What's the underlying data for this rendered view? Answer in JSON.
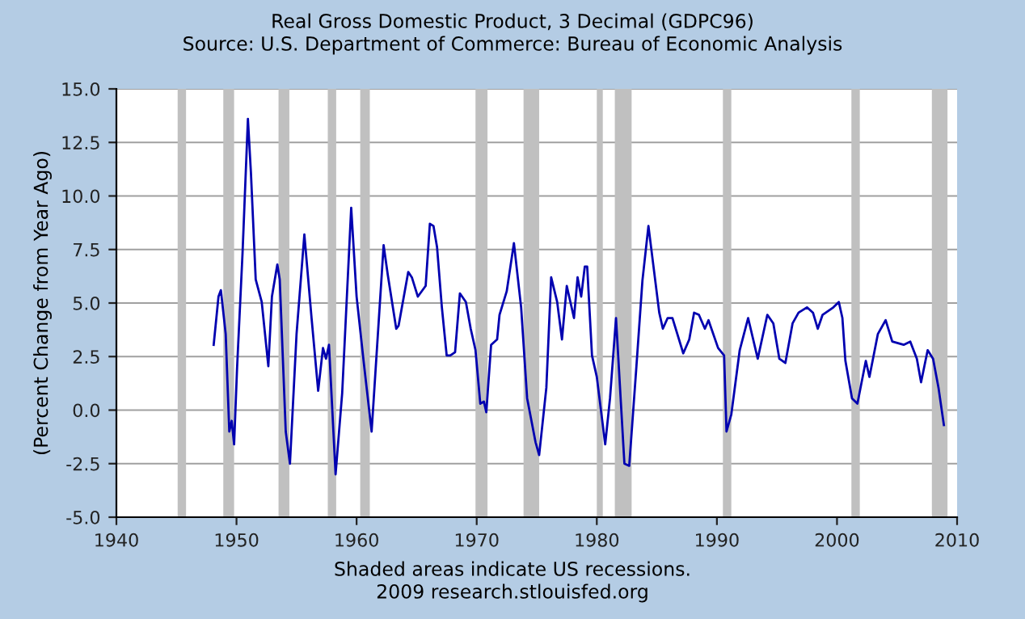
{
  "chart_data": {
    "type": "line",
    "title": "Real Gross Domestic Product, 3 Decimal (GDPC96)",
    "subtitle": "Source: U.S. Department of Commerce: Bureau of Economic Analysis",
    "ylabel": "(Percent Change from Year Ago)",
    "annotations": [
      "Shaded areas indicate US recessions.",
      "2009 research.stlouisfed.org"
    ],
    "xlim": [
      1940,
      2010
    ],
    "xticks": [
      1940,
      1950,
      1960,
      1970,
      1980,
      1990,
      2000,
      2010
    ],
    "ylim": [
      -5,
      15
    ],
    "yticks": [
      {
        "value": -5,
        "label": "-5.0"
      },
      {
        "value": -2.5,
        "label": "-2.5"
      },
      {
        "value": 0,
        "label": "0.0"
      },
      {
        "value": 2.5,
        "label": "2.5"
      },
      {
        "value": 5,
        "label": "5.0"
      },
      {
        "value": 7.5,
        "label": "7.5"
      },
      {
        "value": 10,
        "label": "10.0"
      },
      {
        "value": 12.5,
        "label": "12.5"
      },
      {
        "value": 15,
        "label": "15.0"
      }
    ],
    "grid": "y",
    "legend": false,
    "marker": "none",
    "line_style": "solid",
    "bands": [
      {
        "axis": "x",
        "from": 1945.1,
        "to": 1945.8,
        "color": "#c0c0c0"
      },
      {
        "axis": "x",
        "from": 1948.9,
        "to": 1949.8,
        "color": "#c0c0c0"
      },
      {
        "axis": "x",
        "from": 1953.5,
        "to": 1954.4,
        "color": "#c0c0c0"
      },
      {
        "axis": "x",
        "from": 1957.6,
        "to": 1958.3,
        "color": "#c0c0c0"
      },
      {
        "axis": "x",
        "from": 1960.3,
        "to": 1961.1,
        "color": "#c0c0c0"
      },
      {
        "axis": "x",
        "from": 1969.9,
        "to": 1970.9,
        "color": "#c0c0c0"
      },
      {
        "axis": "x",
        "from": 1973.9,
        "to": 1975.2,
        "color": "#c0c0c0"
      },
      {
        "axis": "x",
        "from": 1980.0,
        "to": 1980.5,
        "color": "#c0c0c0"
      },
      {
        "axis": "x",
        "from": 1981.5,
        "to": 1982.9,
        "color": "#c0c0c0"
      },
      {
        "axis": "x",
        "from": 1990.5,
        "to": 1991.2,
        "color": "#c0c0c0"
      },
      {
        "axis": "x",
        "from": 2001.2,
        "to": 2001.9,
        "color": "#c0c0c0"
      },
      {
        "axis": "x",
        "from": 2007.9,
        "to": 2009.2,
        "color": "#c0c0c0"
      }
    ],
    "series": [
      {
        "color": "#0000b0",
        "x": [
          1948.1,
          1948.5,
          1948.7,
          1949.1,
          1949.4,
          1949.6,
          1949.8,
          1950.05,
          1950.5,
          1950.95,
          1951.2,
          1951.6,
          1952.1,
          1952.65,
          1952.95,
          1953.4,
          1953.6,
          1954.1,
          1954.45,
          1955.0,
          1955.65,
          1956.25,
          1956.8,
          1957.2,
          1957.45,
          1957.7,
          1958.25,
          1958.8,
          1959.55,
          1960.0,
          1960.6,
          1961.25,
          1962.25,
          1962.6,
          1963.3,
          1963.5,
          1964.3,
          1964.6,
          1965.1,
          1965.75,
          1966.1,
          1966.4,
          1966.7,
          1967.1,
          1967.5,
          1967.8,
          1968.2,
          1968.6,
          1969.1,
          1969.5,
          1969.9,
          1970.3,
          1970.6,
          1970.8,
          1971.2,
          1971.7,
          1971.9,
          1972.5,
          1973.1,
          1973.7,
          1974.2,
          1974.9,
          1975.2,
          1975.8,
          1976.2,
          1976.7,
          1977.1,
          1977.5,
          1978.1,
          1978.4,
          1978.7,
          1979.0,
          1979.2,
          1979.6,
          1980.0,
          1980.7,
          1981.1,
          1981.6,
          1982.0,
          1982.3,
          1982.7,
          1983.3,
          1983.8,
          1984.3,
          1984.7,
          1985.2,
          1985.5,
          1985.9,
          1986.3,
          1987.2,
          1987.7,
          1988.1,
          1988.5,
          1989.0,
          1989.3,
          1990.1,
          1990.6,
          1990.8,
          1991.2,
          1991.9,
          1992.6,
          1993.4,
          1994.2,
          1994.7,
          1995.2,
          1995.7,
          1996.3,
          1996.8,
          1997.5,
          1998.0,
          1998.4,
          1998.8,
          1999.7,
          2000.15,
          2000.45,
          2000.7,
          2001.25,
          2001.7,
          2002.4,
          2002.7,
          2003.4,
          2004.05,
          2004.6,
          2005.55,
          2006.1,
          2006.65,
          2007.0,
          2007.55,
          2008.0,
          2008.45,
          2008.9
        ],
        "values": [
          3.05,
          5.3,
          5.6,
          3.55,
          -1.0,
          -0.5,
          -1.6,
          2.0,
          7.3,
          13.6,
          11.1,
          6.1,
          5.05,
          2.05,
          5.3,
          6.8,
          6.1,
          -1.0,
          -2.5,
          3.55,
          8.2,
          4.3,
          0.9,
          2.9,
          2.4,
          3.05,
          -3.0,
          0.8,
          9.45,
          5.3,
          2.2,
          -1.0,
          7.7,
          6.3,
          3.8,
          3.95,
          6.45,
          6.2,
          5.3,
          5.8,
          8.7,
          8.6,
          7.6,
          4.8,
          2.55,
          2.55,
          2.7,
          5.45,
          5.05,
          3.8,
          2.8,
          0.3,
          0.4,
          -0.1,
          3.05,
          3.3,
          4.45,
          5.55,
          7.8,
          4.8,
          0.55,
          -1.5,
          -2.1,
          1.05,
          6.2,
          5.05,
          3.3,
          5.8,
          4.3,
          6.2,
          5.3,
          6.7,
          6.7,
          2.55,
          1.55,
          -1.6,
          0.55,
          4.3,
          0.4,
          -2.5,
          -2.6,
          2.05,
          6.05,
          8.6,
          6.8,
          4.55,
          3.8,
          4.3,
          4.3,
          2.65,
          3.3,
          4.55,
          4.45,
          3.8,
          4.2,
          2.9,
          2.55,
          -1.0,
          -0.2,
          2.8,
          4.3,
          2.4,
          4.45,
          4.05,
          2.4,
          2.2,
          4.05,
          4.55,
          4.8,
          4.55,
          3.8,
          4.45,
          4.8,
          5.05,
          4.3,
          2.3,
          0.55,
          0.3,
          2.3,
          1.55,
          3.55,
          4.2,
          3.2,
          3.05,
          3.2,
          2.4,
          1.3,
          2.8,
          2.4,
          1.05,
          -0.7
        ]
      }
    ]
  }
}
